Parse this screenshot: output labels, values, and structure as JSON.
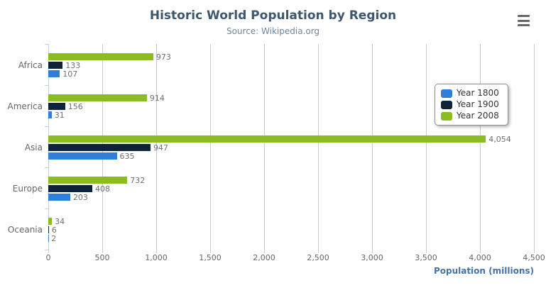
{
  "header": {
    "title": "Historic World Population by Region",
    "subtitle": "Source: Wikipedia.org"
  },
  "icons": {
    "menu": "hamburger-icon"
  },
  "chart_data": {
    "type": "bar",
    "orientation": "horizontal",
    "title": "Historic World Population by Region",
    "subtitle": "Source: Wikipedia.org",
    "xlabel": "Population (millions)",
    "ylabel": "",
    "xlim": [
      0,
      4500
    ],
    "x_ticks": [
      0,
      500,
      1000,
      1500,
      2000,
      2500,
      3000,
      3500,
      4000,
      4500
    ],
    "x_tick_labels": [
      "0",
      "500",
      "1,000",
      "1,500",
      "2,000",
      "2,500",
      "3,000",
      "3,500",
      "4,000",
      "4,500"
    ],
    "grid": true,
    "data_labels": true,
    "legend_position": "right-inside",
    "categories": [
      "Africa",
      "America",
      "Asia",
      "Europe",
      "Oceania"
    ],
    "series": [
      {
        "name": "Year 1800",
        "color": "#2f7ed8",
        "values": [
          107,
          31,
          635,
          203,
          2
        ]
      },
      {
        "name": "Year 1900",
        "color": "#0d233a",
        "values": [
          133,
          156,
          947,
          408,
          6
        ]
      },
      {
        "name": "Year 2008",
        "color": "#8bbc21",
        "values": [
          973,
          914,
          4054,
          732,
          34
        ]
      }
    ],
    "bar_order_top_to_bottom": [
      "Year 2008",
      "Year 1900",
      "Year 1800"
    ],
    "value_label_format": "thousands-comma"
  }
}
